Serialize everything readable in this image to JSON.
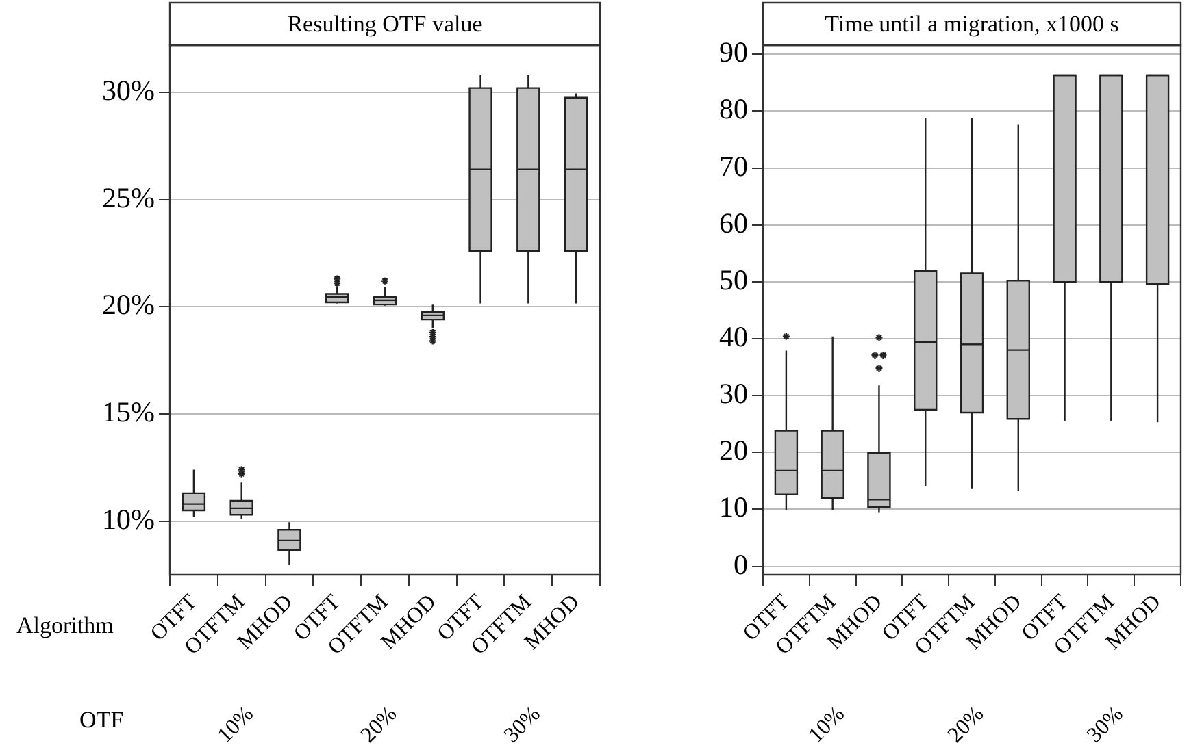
{
  "chart_data": [
    {
      "type": "box",
      "title": "Resulting OTF value",
      "xlabel": "Algorithm",
      "categories": [
        "OTFT",
        "OTFTM",
        "MHOD",
        "OTFT",
        "OTFTM",
        "MHOD",
        "OTFT",
        "OTFTM",
        "MHOD"
      ],
      "color": "#c0c0c0",
      "boxes": [
        {
          "low": 10.2,
          "q1": 10.5,
          "median": 10.8,
          "q3": 11.3,
          "high": 12.4
        },
        {
          "low": 10.1,
          "q1": 10.3,
          "median": 10.6,
          "q3": 10.95,
          "high": 11.8,
          "outliers": [
            12.2,
            12.4
          ]
        },
        {
          "low": 7.95,
          "q1": 8.65,
          "median": 9.1,
          "q3": 9.6,
          "high": 9.95
        },
        {
          "low": 20.15,
          "q1": 20.2,
          "median": 20.45,
          "q3": 20.6,
          "high": 20.9,
          "outliers": [
            21.1,
            21.3
          ]
        },
        {
          "low": 20.05,
          "q1": 20.1,
          "median": 20.3,
          "q3": 20.45,
          "high": 20.9,
          "outliers": [
            21.2
          ]
        },
        {
          "low": 19.0,
          "q1": 19.4,
          "median": 19.6,
          "q3": 19.75,
          "high": 20.1,
          "outliers": [
            18.4,
            18.6,
            18.8
          ]
        },
        {
          "low": 20.15,
          "q1": 22.6,
          "median": 26.4,
          "q3": 30.2,
          "high": 30.8
        },
        {
          "low": 20.15,
          "q1": 22.6,
          "median": 26.4,
          "q3": 30.2,
          "high": 30.8
        },
        {
          "low": 20.15,
          "q1": 22.6,
          "median": 26.4,
          "q3": 29.75,
          "high": 29.95
        }
      ],
      "ylim": [
        7.5,
        32.2
      ],
      "yticks": [
        {
          "value": 10,
          "label": "10%"
        },
        {
          "value": 15,
          "label": "15%"
        },
        {
          "value": 20,
          "label": "20%"
        },
        {
          "value": 25,
          "label": "25%"
        },
        {
          "value": 30,
          "label": "30%"
        }
      ],
      "grid": "y",
      "legend": false,
      "annotations": [
        "OTF",
        "10%",
        "20%",
        "30%"
      ]
    },
    {
      "type": "box",
      "title": "Time until a migration, x1000 s",
      "categories": [
        "OTFT",
        "OTFTM",
        "MHOD",
        "OTFT",
        "OTFTM",
        "MHOD",
        "OTFT",
        "OTFTM",
        "MHOD"
      ],
      "color": "#c0c0c0",
      "boxes": [
        {
          "low": 9.9,
          "q1": 12.6,
          "median": 16.8,
          "q3": 23.8,
          "high": 37.9,
          "outliers": [
            40.4
          ]
        },
        {
          "low": 9.9,
          "q1": 12.0,
          "median": 16.8,
          "q3": 23.8,
          "high": 40.4
        },
        {
          "low": 9.4,
          "q1": 10.4,
          "median": 11.7,
          "q3": 19.9,
          "high": 31.8,
          "outliers": [
            40.2,
            37.1,
            37.1,
            34.8
          ]
        },
        {
          "low": 14.1,
          "q1": 27.5,
          "median": 39.4,
          "q3": 51.9,
          "high": 78.8
        },
        {
          "low": 13.7,
          "q1": 27.0,
          "median": 39.0,
          "q3": 51.5,
          "high": 78.8
        },
        {
          "low": 13.3,
          "q1": 25.9,
          "median": 38.0,
          "q3": 50.2,
          "high": 77.7
        },
        {
          "low": 25.5,
          "q1": 50.0,
          "median": 86.3,
          "q3": 86.3,
          "high": 86.3
        },
        {
          "low": 25.5,
          "q1": 50.0,
          "median": 86.3,
          "q3": 86.3,
          "high": 86.3
        },
        {
          "low": 25.3,
          "q1": 49.6,
          "median": 86.3,
          "q3": 86.3,
          "high": 86.3
        }
      ],
      "ylim": [
        -1.5,
        91.6
      ],
      "yticks": [
        0,
        10,
        20,
        30,
        40,
        50,
        60,
        70,
        80,
        90
      ],
      "grid": "y",
      "legend": false,
      "annotations": [
        "10%",
        "20%",
        "30%"
      ]
    }
  ]
}
